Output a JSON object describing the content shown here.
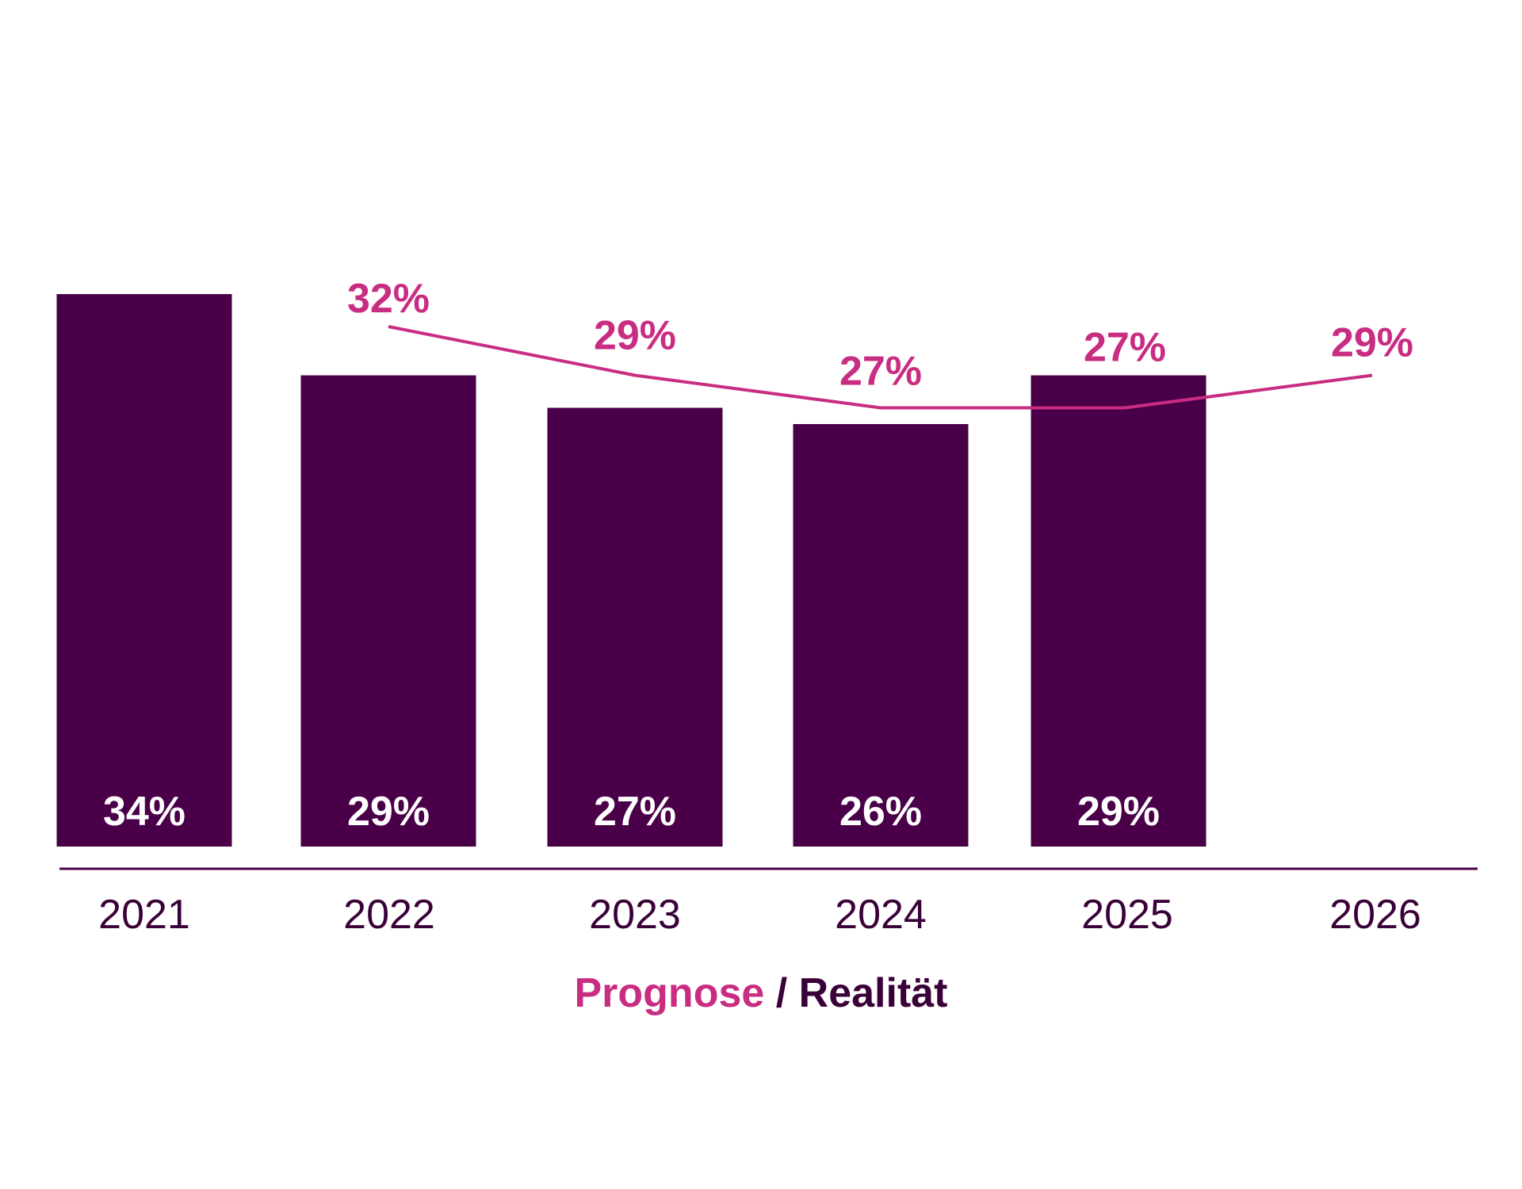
{
  "chart_data": {
    "type": "bar",
    "title": "",
    "xlabel": "",
    "ylabel": "",
    "categories": [
      "2021",
      "2022",
      "2023",
      "2024",
      "2025",
      "2026"
    ],
    "series": [
      {
        "name": "Realität",
        "type": "bar",
        "color": "#4A0048",
        "values": [
          34,
          29,
          27,
          26,
          29,
          null
        ],
        "labels": [
          "34%",
          "29%",
          "27%",
          "26%",
          "29%",
          null
        ]
      },
      {
        "name": "Prognose",
        "type": "line",
        "color": "#C92D82",
        "values": [
          null,
          32,
          29,
          27,
          27,
          29
        ],
        "labels": [
          null,
          "32%",
          "29%",
          "27%",
          "27%",
          "29%"
        ]
      }
    ],
    "unit": "%",
    "ylim": [
      0,
      40
    ],
    "grid": false,
    "legend": {
      "placement": "bottom",
      "forecast": "Prognose",
      "separator": " / ",
      "actual": "Realität"
    },
    "colors": {
      "bar": "#4A0048",
      "line": "#C92D82",
      "axis": "#4A0048",
      "text": "#3A0038"
    }
  }
}
